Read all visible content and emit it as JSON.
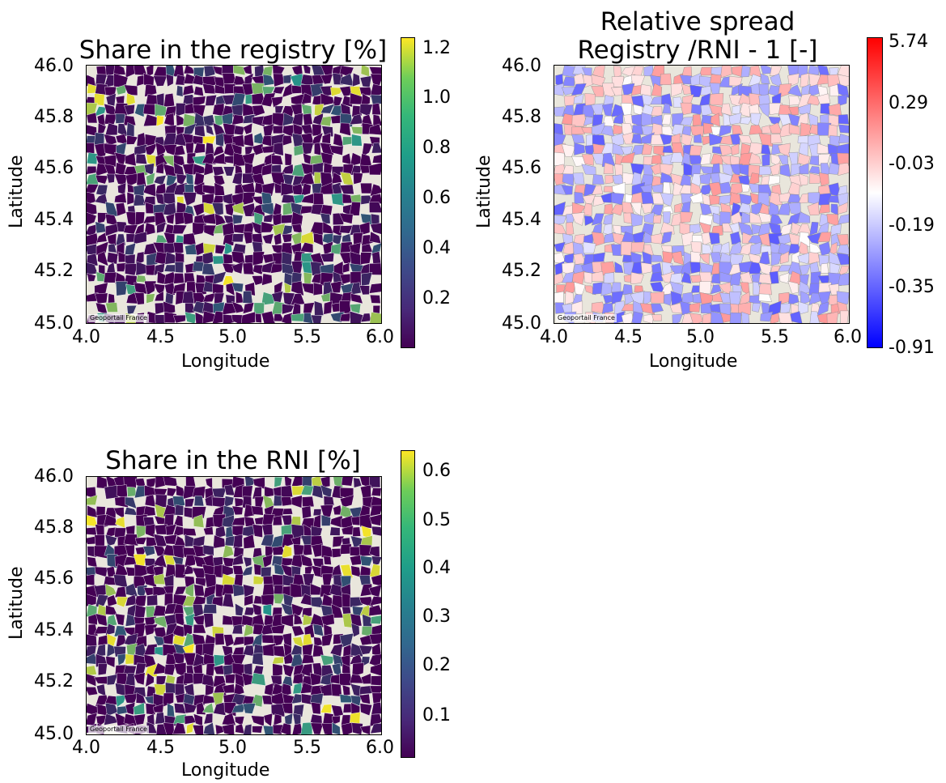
{
  "panels": [
    {
      "id": "registry",
      "title": "Share in the registry [%]",
      "xlabel": "Longitude",
      "ylabel": "Latitude",
      "xticks": [
        "4.0",
        "4.5",
        "5.0",
        "5.5",
        "6.0"
      ],
      "yticks": [
        "46.0",
        "45.8",
        "45.6",
        "45.4",
        "45.2",
        "45.0"
      ],
      "xlim": [
        4.0,
        6.0
      ],
      "ylim": [
        45.0,
        46.0
      ],
      "basemap_credit": "Geoportail France",
      "colormap": "viridis",
      "colorbar_ticks": [
        "1.2",
        "1.0",
        "0.8",
        "0.6",
        "0.4",
        "0.2"
      ],
      "colorbar_range": [
        0.0,
        1.25
      ],
      "colors": {
        "low": "#440154",
        "mid": "#21918c",
        "high": "#fde725"
      }
    },
    {
      "id": "spread",
      "title_line1": "Relative spread",
      "title_line2": "Registry /RNI - 1 [-]",
      "xlabel": "Longitude",
      "ylabel": "Latitude",
      "xticks": [
        "4.0",
        "4.5",
        "5.0",
        "5.5",
        "6.0"
      ],
      "yticks": [
        "46.0",
        "45.8",
        "45.6",
        "45.4",
        "45.2",
        "45.0"
      ],
      "xlim": [
        4.0,
        6.0
      ],
      "ylim": [
        45.0,
        46.0
      ],
      "basemap_credit": "Geoportail France",
      "colormap": "bwr",
      "colorbar_ticks": [
        "5.74",
        "0.29",
        "-0.03",
        "-0.19",
        "-0.35",
        "-0.91"
      ],
      "colors": {
        "low": "#0000ff",
        "mid": "#ffffff",
        "high": "#ff0000"
      }
    },
    {
      "id": "rni",
      "title": "Share in the RNI [%]",
      "xlabel": "Longitude",
      "ylabel": "Latitude",
      "xticks": [
        "4.0",
        "4.5",
        "5.0",
        "5.5",
        "6.0"
      ],
      "yticks": [
        "46.0",
        "45.8",
        "45.6",
        "45.4",
        "45.2",
        "45.0"
      ],
      "xlim": [
        4.0,
        6.0
      ],
      "ylim": [
        45.0,
        46.0
      ],
      "basemap_credit": "Geoportail France",
      "colormap": "viridis",
      "colorbar_ticks": [
        "0.6",
        "0.5",
        "0.4",
        "0.3",
        "0.2",
        "0.1"
      ],
      "colorbar_range": [
        0.0,
        0.65
      ],
      "colors": {
        "low": "#440154",
        "mid": "#21918c",
        "high": "#fde725"
      }
    }
  ]
}
